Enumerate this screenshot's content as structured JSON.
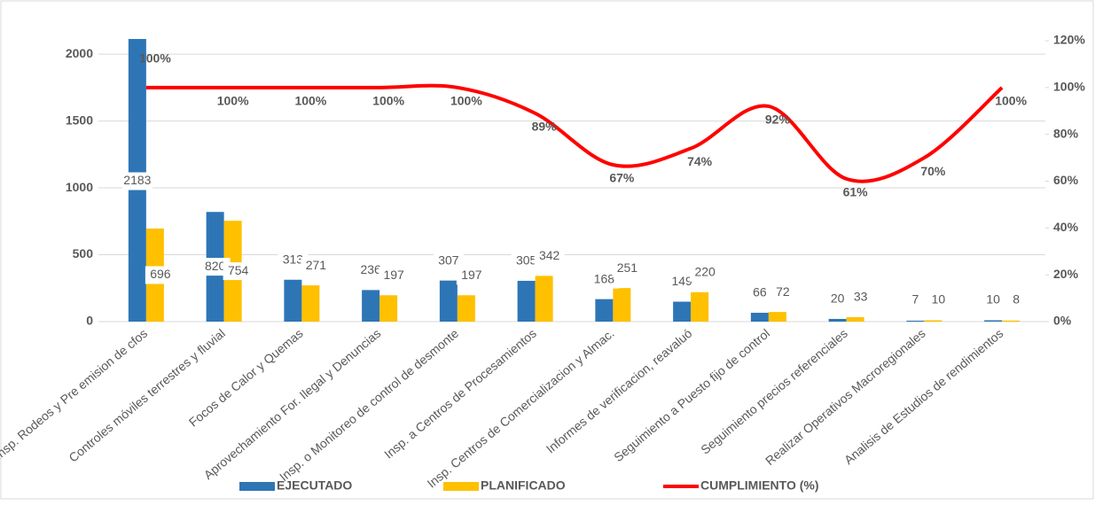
{
  "chart_data": {
    "type": "bar_line",
    "categories": [
      "Insp. Rodeos y Pre emision de cfos",
      "Controles móviles terrestres y fluvial",
      "Focos de Calor y Quemas",
      "Aprovechamiento For. Ilegal y Denuncias",
      "Insp. o Monitoreo de control de desmonte",
      "Insp. a Centros de Procesamientos",
      "Insp. Centros de Comercializacion y Almac.",
      "Informes de verificacion, reavaluó",
      "Seguimiento a Puesto fijo de control",
      "Seguimiento precios referenciales",
      "Realizar Operativos Macroregionales",
      "Analisis de Estudios de rendimientos"
    ],
    "series": [
      {
        "name": "EJECUTADO",
        "color": "#2e75b6",
        "values": [
          2183,
          820,
          313,
          236,
          307,
          305,
          168,
          149,
          66,
          20,
          7,
          10
        ]
      },
      {
        "name": "PLANIFICADO",
        "color": "#ffc000",
        "values": [
          696,
          754,
          271,
          197,
          197,
          342,
          251,
          220,
          72,
          33,
          10,
          8
        ]
      },
      {
        "name": "CUMPLIMIENTO (%)",
        "color": "#ff0000",
        "axis": "y2",
        "values": [
          100,
          100,
          100,
          100,
          100,
          89,
          67,
          74,
          92,
          61,
          70,
          100
        ],
        "value_labels": [
          "100%",
          "100%",
          "100%",
          "100%",
          "100%",
          "89%",
          "67%",
          "74%",
          "92%",
          "61%",
          "70%",
          "100%"
        ]
      }
    ],
    "ylim": [
      0,
      2100
    ],
    "yticks": [
      0,
      500,
      1000,
      1500,
      2000
    ],
    "y2lim": [
      0,
      120
    ],
    "y2ticks": [
      {
        "value": 0,
        "label": "0%"
      },
      {
        "value": 20,
        "label": "20%"
      },
      {
        "value": 40,
        "label": "40%"
      },
      {
        "value": 60,
        "label": "60%"
      },
      {
        "value": 80,
        "label": "80%"
      },
      {
        "value": 100,
        "label": "100%"
      },
      {
        "value": 120,
        "label": "120%"
      }
    ],
    "grid": true,
    "legend": "bottom"
  }
}
